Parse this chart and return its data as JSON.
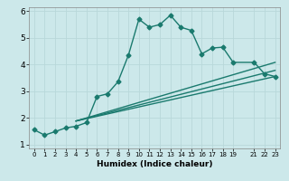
{
  "xlabel": "Humidex (Indice chaleur)",
  "ylabel": "",
  "bg_color": "#cce8ea",
  "line_color": "#1a7a6e",
  "grid_color": "#b8d8da",
  "xlim": [
    -0.5,
    23.5
  ],
  "ylim": [
    0.85,
    6.15
  ],
  "yticks": [
    1,
    2,
    3,
    4,
    5,
    6
  ],
  "xticks": [
    0,
    1,
    2,
    3,
    4,
    5,
    6,
    7,
    8,
    9,
    10,
    11,
    12,
    13,
    14,
    15,
    16,
    17,
    18,
    19,
    21,
    22,
    23
  ],
  "xtick_labels": [
    "0",
    "1",
    "2",
    "3",
    "4",
    "5",
    "6",
    "7",
    "8",
    "9",
    "10",
    "11",
    "12",
    "13",
    "14",
    "15",
    "16",
    "17",
    "18",
    "19",
    "21",
    "22",
    "23"
  ],
  "series1_x": [
    0,
    1,
    2,
    3,
    4,
    5,
    6,
    7,
    8,
    9,
    10,
    11,
    12,
    13,
    14,
    15,
    16,
    17,
    18,
    19,
    21,
    22,
    23
  ],
  "series1_y": [
    1.55,
    1.35,
    1.48,
    1.62,
    1.68,
    1.82,
    2.8,
    2.9,
    3.35,
    4.35,
    5.7,
    5.4,
    5.5,
    5.85,
    5.4,
    5.28,
    4.4,
    4.62,
    4.65,
    4.08,
    4.08,
    3.65,
    3.55
  ],
  "series2_x": [
    4,
    23
  ],
  "series2_y": [
    1.88,
    3.55
  ],
  "series3_x": [
    4,
    23
  ],
  "series3_y": [
    1.88,
    3.78
  ],
  "series4_x": [
    4,
    23
  ],
  "series4_y": [
    1.88,
    4.08
  ],
  "marker": "D",
  "markersize": 2.5,
  "linewidth": 1.0
}
